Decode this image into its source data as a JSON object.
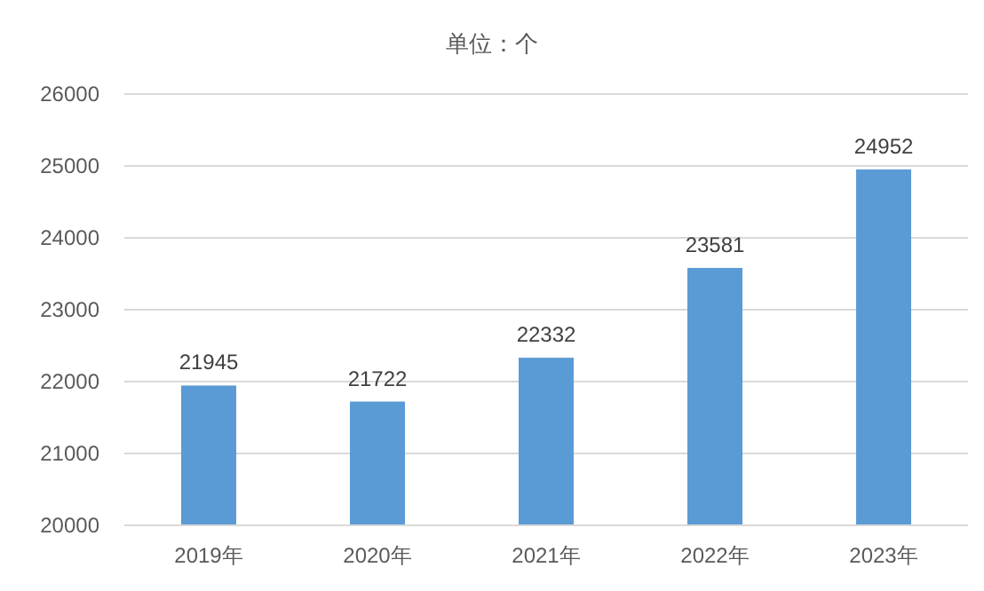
{
  "chart_data": {
    "type": "bar",
    "title": "单位：个",
    "categories": [
      "2019年",
      "2020年",
      "2021年",
      "2022年",
      "2023年"
    ],
    "values": [
      21945,
      21722,
      22332,
      23581,
      24952
    ],
    "color": "#5b9bd5",
    "ylim": [
      20000,
      26000
    ],
    "yticks": [
      20000,
      21000,
      22000,
      23000,
      24000,
      25000,
      26000
    ],
    "grid": "y",
    "data_labels": true
  }
}
